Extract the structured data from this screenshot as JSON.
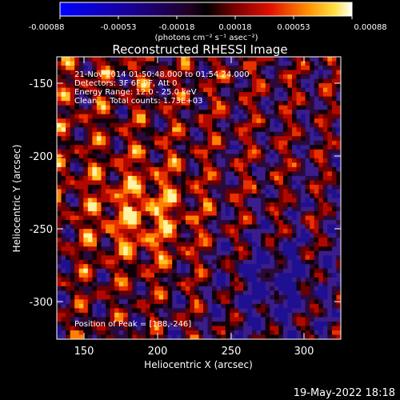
{
  "colorbar": {
    "ticks": [
      "-0.00088",
      "-0.00053",
      "-0.00018",
      "0.00018",
      "0.00053",
      "0.00088"
    ],
    "units_label": "(photons cm⁻² s⁻¹ asec⁻²)"
  },
  "plot": {
    "title": "Reconstructed RHESSI Image",
    "xlabel": "Heliocentric X (arcsec)",
    "ylabel": "Heliocentric Y (arcsec)",
    "xticks": [
      "150",
      "200",
      "250",
      "300"
    ],
    "yticks": [
      "-150",
      "-200",
      "-250",
      "-300"
    ],
    "xlim": [
      133,
      325
    ],
    "ylim": [
      -325,
      -133
    ]
  },
  "annotations": {
    "time_range": "21-Nov-2014 01:50:48.000 to 01:54:24.000",
    "detectors": "Detectors: 3F 6F 9F, Att 0",
    "energy_range": "Energy Range: 12.0 - 25.0 keV",
    "clean_counts": "Clean     Total counts: 1.73E+03",
    "peak_position": "Position of Peak = [188,-246]"
  },
  "footer": {
    "date_stamp": "19-May-2022 18:18"
  }
}
